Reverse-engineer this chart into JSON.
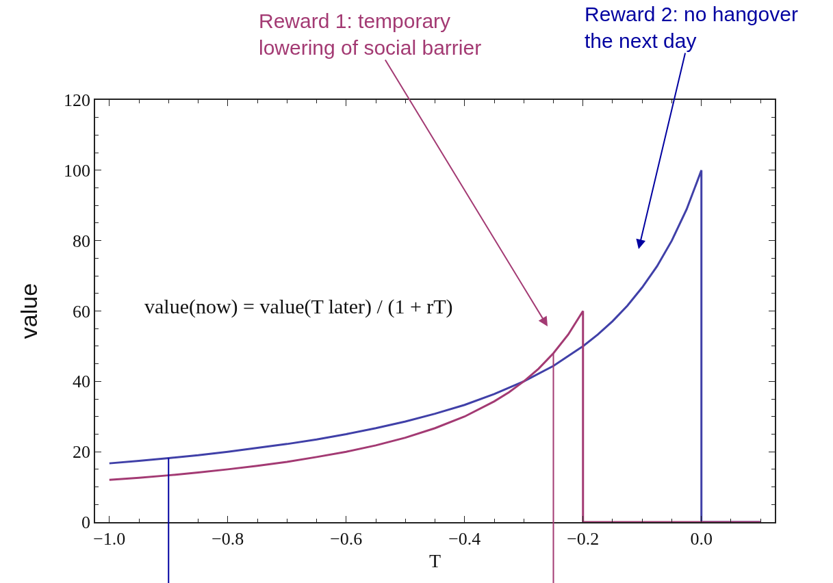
{
  "chart_data": {
    "type": "line",
    "xlabel": "T",
    "ylabel": "value",
    "xlim": [
      -1.024,
      0.124
    ],
    "ylim": [
      0,
      120
    ],
    "xticks": [
      {
        "value": -1,
        "label": "−1.0"
      },
      {
        "value": -0.8,
        "label": "−0.8"
      },
      {
        "value": -0.6,
        "label": "−0.6"
      },
      {
        "value": -0.4,
        "label": "−0.4"
      },
      {
        "value": -0.2,
        "label": "−0.2"
      },
      {
        "value": 0,
        "label": "0.0"
      }
    ],
    "yticks": [
      0,
      20,
      40,
      60,
      80,
      100,
      120
    ],
    "grid": false,
    "marker": "none",
    "line_style": "solid",
    "series": [
      {
        "color": "#4040a8",
        "x": [
          -1,
          -0.95,
          -0.9,
          -0.85,
          -0.8,
          -0.75,
          -0.7,
          -0.65,
          -0.6,
          -0.55,
          -0.5,
          -0.45,
          -0.4,
          -0.35,
          -0.3,
          -0.25,
          -0.2,
          -0.175,
          -0.15,
          -0.125,
          -0.1,
          -0.075,
          -0.05,
          -0.025,
          0,
          0,
          0.1
        ],
        "values": [
          16.7,
          17.4,
          18.2,
          19.0,
          20,
          21.1,
          22.2,
          23.5,
          25,
          26.7,
          28.6,
          30.8,
          33.3,
          36.4,
          40,
          44.4,
          50,
          53.3,
          57.1,
          61.5,
          66.7,
          72.7,
          80,
          88.9,
          100,
          0,
          0
        ]
      },
      {
        "color": "#a33a73",
        "x": [
          -1,
          -0.95,
          -0.9,
          -0.85,
          -0.8,
          -0.75,
          -0.7,
          -0.65,
          -0.6,
          -0.55,
          -0.5,
          -0.45,
          -0.4,
          -0.35,
          -0.325,
          -0.3,
          -0.275,
          -0.25,
          -0.225,
          -0.2,
          -0.2,
          0.1
        ],
        "values": [
          12,
          12.6,
          13.3,
          14.1,
          15,
          16,
          17.1,
          18.5,
          20,
          21.8,
          24,
          26.7,
          30,
          34.3,
          36.9,
          40,
          43.6,
          48,
          53.3,
          60,
          0,
          0
        ]
      }
    ],
    "ref_lines": [
      {
        "axis": "x",
        "value": -0.9,
        "color": "#0000a0"
      },
      {
        "axis": "x",
        "value": -0.25,
        "color": "#a33a73"
      }
    ],
    "annotations": [
      "Reward 1: temporary\nlowering of social barrier",
      "Reward 2: no hangover\nthe next day",
      "value(now) = value(T later) / (1 + rT)"
    ]
  }
}
